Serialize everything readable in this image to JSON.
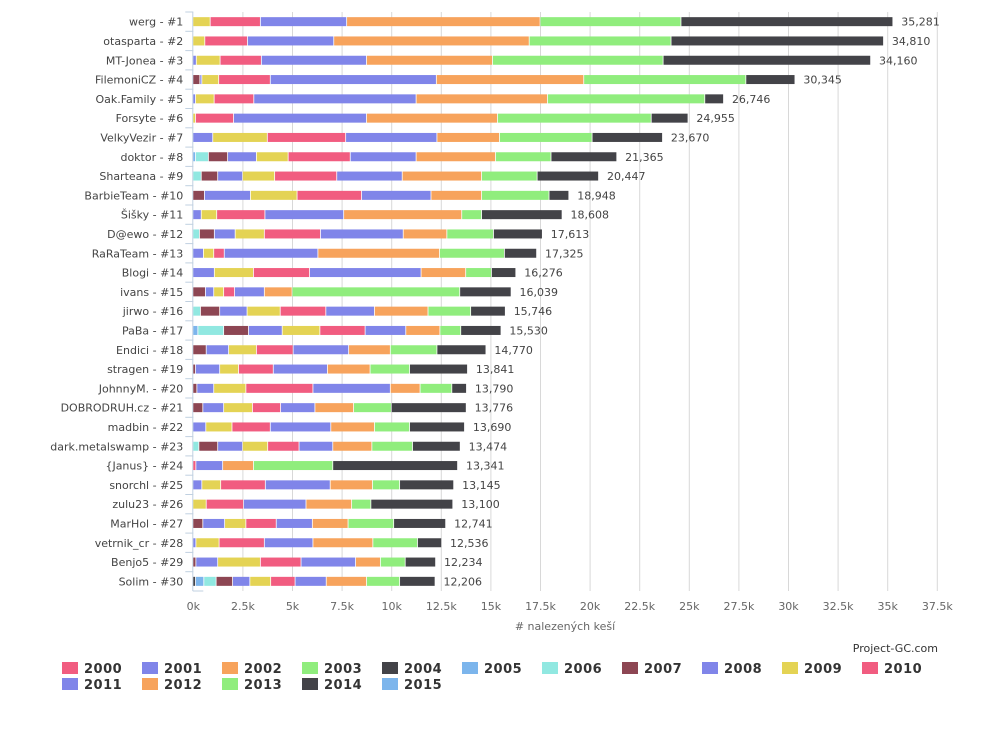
{
  "chart_data": {
    "type": "bar",
    "orientation": "horizontal",
    "stacked": true,
    "xlabel": "# nalezených keší",
    "credit": "Project-GC.com",
    "xlim": [
      0,
      37500
    ],
    "grid": true,
    "legend_position": "bottom",
    "ticks": [
      "0k",
      "2.5k",
      "5k",
      "7.5k",
      "10k",
      "12.5k",
      "15k",
      "17.5k",
      "20k",
      "22.5k",
      "25k",
      "27.5k",
      "30k",
      "32.5k",
      "35k",
      "37.5k"
    ],
    "tick_values": [
      0,
      2500,
      5000,
      7500,
      10000,
      12500,
      15000,
      17500,
      20000,
      22500,
      25000,
      27500,
      30000,
      32500,
      35000,
      37500
    ],
    "categories": [
      "werg - #1",
      "otasparta - #2",
      "MT-Jonea - #3",
      "FilemoniCZ - #4",
      "Oak.Family - #5",
      "Forsyte - #6",
      "VelkyVezir - #7",
      "doktor - #8",
      "Sharteana - #9",
      "BarbieTeam - #10",
      "Šišky - #11",
      "D@ewo - #12",
      "RaRaTeam - #13",
      "Blogi - #14",
      "ivans - #15",
      "jirwo - #16",
      "PaBa - #17",
      "Endici - #18",
      "stragen - #19",
      "JohnnyM. - #20",
      "DOBRODRUH.cz - #21",
      "madbin - #22",
      "dark.metalswamp - #23",
      "{Janus} - #24",
      "snorchl - #25",
      "zulu23 - #26",
      "MarHol - #27",
      "vetrnik_cr - #28",
      "Benjo5 - #29",
      "Solim - #30"
    ],
    "totals": [
      "35,281",
      "34,810",
      "34,160",
      "30,345",
      "26,746",
      "24,955",
      "23,670",
      "21,365",
      "20,447",
      "18,948",
      "18,608",
      "17,613",
      "17,325",
      "16,276",
      "16,039",
      "15,746",
      "15,530",
      "14,770",
      "13,841",
      "13,790",
      "13,776",
      "13,690",
      "13,474",
      "13,341",
      "13,145",
      "13,100",
      "12,741",
      "12,536",
      "12,234",
      "12,206"
    ],
    "series": [
      {
        "name": "2000",
        "color": "#f15c80",
        "values": [
          0,
          0,
          0,
          0,
          0,
          0,
          0,
          0,
          0,
          0,
          0,
          0,
          0,
          0,
          0,
          0,
          0,
          0,
          0,
          0,
          0,
          0,
          0,
          0,
          0,
          0,
          0,
          0,
          0,
          0
        ]
      },
      {
        "name": "2001",
        "color": "#8085e9",
        "values": [
          0,
          0,
          0,
          0,
          0,
          0,
          0,
          0,
          0,
          0,
          0,
          0,
          0,
          0,
          0,
          0,
          0,
          0,
          0,
          0,
          0,
          0,
          0,
          0,
          0,
          0,
          0,
          0,
          0,
          0
        ]
      },
      {
        "name": "2002",
        "color": "#f7a35c",
        "values": [
          0,
          0,
          0,
          0,
          0,
          0,
          0,
          0,
          0,
          0,
          0,
          0,
          0,
          0,
          0,
          0,
          0,
          0,
          0,
          0,
          0,
          0,
          0,
          0,
          0,
          0,
          0,
          0,
          0,
          0
        ]
      },
      {
        "name": "2003",
        "color": "#90ed7d",
        "values": [
          0,
          0,
          0,
          0,
          0,
          0,
          0,
          0,
          0,
          0,
          0,
          0,
          0,
          0,
          0,
          0,
          0,
          0,
          0,
          0,
          0,
          0,
          0,
          0,
          0,
          0,
          0,
          0,
          0,
          0
        ]
      },
      {
        "name": "2004",
        "color": "#434348",
        "values": [
          0,
          0,
          0,
          0,
          0,
          0,
          0,
          0,
          0,
          0,
          0,
          0,
          0,
          0,
          0,
          0,
          0,
          0,
          0,
          0,
          0,
          0,
          0,
          0,
          0,
          0,
          0,
          0,
          0,
          130
        ]
      },
      {
        "name": "2005",
        "color": "#7cb5ec",
        "values": [
          0,
          0,
          0,
          0,
          0,
          0,
          0,
          130,
          0,
          0,
          0,
          0,
          0,
          0,
          0,
          0,
          250,
          0,
          0,
          0,
          0,
          0,
          0,
          0,
          0,
          0,
          0,
          0,
          0,
          420
        ]
      },
      {
        "name": "2006",
        "color": "#91e8e1",
        "values": [
          0,
          0,
          0,
          0,
          0,
          0,
          0,
          650,
          420,
          0,
          0,
          330,
          0,
          0,
          0,
          380,
          1300,
          0,
          0,
          0,
          0,
          0,
          300,
          0,
          0,
          0,
          0,
          0,
          0,
          620
        ]
      },
      {
        "name": "2007",
        "color": "#8d4653",
        "values": [
          0,
          0,
          0,
          350,
          0,
          0,
          0,
          970,
          830,
          580,
          0,
          750,
          0,
          0,
          630,
          970,
          1250,
          670,
          130,
          200,
          500,
          0,
          950,
          0,
          0,
          0,
          500,
          0,
          150,
          830
        ]
      },
      {
        "name": "2008",
        "color": "#8085e9",
        "values": [
          0,
          0,
          170,
          100,
          130,
          0,
          1000,
          1450,
          1250,
          2320,
          420,
          1050,
          530,
          1080,
          420,
          1380,
          1700,
          1130,
          1220,
          850,
          1050,
          650,
          1250,
          0,
          450,
          0,
          1100,
          150,
          1100,
          870
        ]
      },
      {
        "name": "2009",
        "color": "#e4d354",
        "values": [
          870,
          600,
          1200,
          850,
          940,
          130,
          2750,
          1600,
          1620,
          2350,
          780,
          1470,
          520,
          1970,
          500,
          1670,
          1900,
          1400,
          950,
          1620,
          1450,
          1320,
          1270,
          0,
          950,
          670,
          1070,
          1170,
          2150,
          1050
        ]
      },
      {
        "name": "2010",
        "color": "#f15c80",
        "values": [
          2530,
          2150,
          2080,
          2600,
          2000,
          1920,
          3950,
          3130,
          3130,
          3250,
          2430,
          2830,
          530,
          2830,
          550,
          2300,
          2280,
          1850,
          1750,
          3380,
          1420,
          1930,
          1580,
          150,
          2250,
          1880,
          1530,
          2280,
          2050,
          1230
        ]
      },
      {
        "name": "2011",
        "color": "#8085e9",
        "values": [
          4350,
          4350,
          5300,
          8370,
          8180,
          6700,
          4600,
          3320,
          3300,
          3500,
          3970,
          4170,
          4720,
          5620,
          1500,
          2450,
          2050,
          2800,
          2730,
          3900,
          1730,
          3050,
          1700,
          1350,
          3270,
          3150,
          1820,
          2450,
          2750,
          1570
        ]
      },
      {
        "name": "2012",
        "color": "#f7a35c",
        "values": [
          9750,
          9850,
          6350,
          7430,
          6620,
          6600,
          3150,
          4000,
          4000,
          2550,
          5950,
          2200,
          6130,
          2250,
          1400,
          2700,
          1720,
          2100,
          2150,
          1500,
          1950,
          2200,
          1970,
          1550,
          2130,
          2300,
          1800,
          3020,
          1250,
          2030
        ]
      },
      {
        "name": "2013",
        "color": "#90ed7d",
        "values": [
          7100,
          7150,
          8600,
          8170,
          7930,
          7750,
          4670,
          2800,
          2800,
          3400,
          1000,
          2350,
          3270,
          1300,
          8450,
          2150,
          1050,
          2350,
          1990,
          1600,
          1900,
          1770,
          2050,
          4000,
          1370,
          970,
          2300,
          2250,
          1250,
          1670
        ]
      },
      {
        "name": "2014",
        "color": "#434348",
        "values": [
          10680,
          10710,
          10460,
          2475,
          946,
          1855,
          3550,
          3315,
          3097,
          998,
          4058,
          2463,
          1625,
          1226,
          2589,
          1746,
          2030,
          2470,
          2921,
          740,
          3776,
          2770,
          2404,
          6291,
          2725,
          4130,
          2621,
          1216,
          1534,
          1786
        ]
      },
      {
        "name": "2015",
        "color": "#7cb5ec",
        "values": [
          0,
          0,
          0,
          0,
          0,
          0,
          0,
          0,
          0,
          0,
          0,
          0,
          0,
          0,
          0,
          0,
          0,
          0,
          0,
          0,
          0,
          0,
          0,
          0,
          0,
          0,
          0,
          0,
          0,
          0
        ]
      }
    ]
  }
}
